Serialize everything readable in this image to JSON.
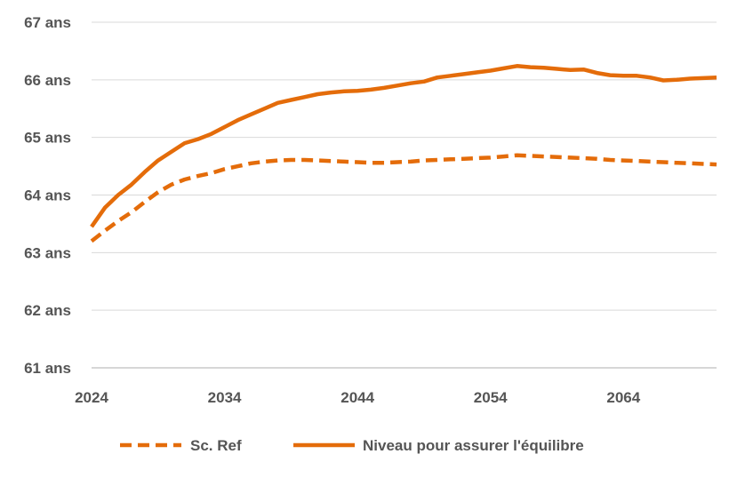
{
  "chart_data": {
    "type": "line",
    "title": "",
    "xlabel": "",
    "ylabel": "",
    "xlim": [
      2024,
      2071
    ],
    "ylim": [
      61,
      67
    ],
    "y_tick_values": [
      61,
      62,
      63,
      64,
      65,
      66,
      67
    ],
    "y_tick_labels": [
      "61 ans",
      "62 ans",
      "63 ans",
      "64 ans",
      "65 ans",
      "66 ans",
      "67 ans"
    ],
    "x_ticks": [
      2024,
      2034,
      2044,
      2054,
      2064
    ],
    "x_tick_labels": [
      "2024",
      "2034",
      "2044",
      "2054",
      "2064"
    ],
    "grid": "horizontal",
    "legend_position": "bottom",
    "color": "#E46C0A",
    "x": [
      2024,
      2025,
      2026,
      2027,
      2028,
      2029,
      2030,
      2031,
      2032,
      2033,
      2034,
      2035,
      2036,
      2037,
      2038,
      2039,
      2040,
      2041,
      2042,
      2043,
      2044,
      2045,
      2046,
      2047,
      2048,
      2049,
      2050,
      2051,
      2052,
      2053,
      2054,
      2055,
      2056,
      2057,
      2058,
      2059,
      2060,
      2061,
      2062,
      2063,
      2064,
      2065,
      2066,
      2067,
      2068,
      2069,
      2070,
      2071
    ],
    "series": [
      {
        "name": "Sc. Ref",
        "style": "dashed",
        "values": [
          63.2,
          63.38,
          63.55,
          63.7,
          63.88,
          64.05,
          64.18,
          64.27,
          64.33,
          64.38,
          64.45,
          64.5,
          64.55,
          64.58,
          64.6,
          64.61,
          64.61,
          64.6,
          64.59,
          64.58,
          64.57,
          64.56,
          64.56,
          64.57,
          64.58,
          64.6,
          64.61,
          64.62,
          64.63,
          64.64,
          64.65,
          64.67,
          64.69,
          64.68,
          64.67,
          64.66,
          64.65,
          64.64,
          64.63,
          64.61,
          64.6,
          64.59,
          64.58,
          64.57,
          64.56,
          64.55,
          64.54,
          64.53
        ]
      },
      {
        "name": "Niveau pour assurer l'équilibre",
        "style": "solid",
        "values": [
          63.45,
          63.78,
          64.0,
          64.18,
          64.4,
          64.6,
          64.75,
          64.9,
          64.97,
          65.06,
          65.18,
          65.3,
          65.4,
          65.5,
          65.6,
          65.65,
          65.7,
          65.75,
          65.78,
          65.8,
          65.81,
          65.83,
          65.86,
          65.9,
          65.94,
          65.97,
          66.04,
          66.07,
          66.1,
          66.13,
          66.16,
          66.2,
          66.24,
          66.22,
          66.21,
          66.19,
          66.17,
          66.18,
          66.12,
          66.08,
          66.07,
          66.07,
          66.04,
          65.99,
          66.0,
          66.02,
          66.03,
          66.04
        ]
      }
    ]
  }
}
